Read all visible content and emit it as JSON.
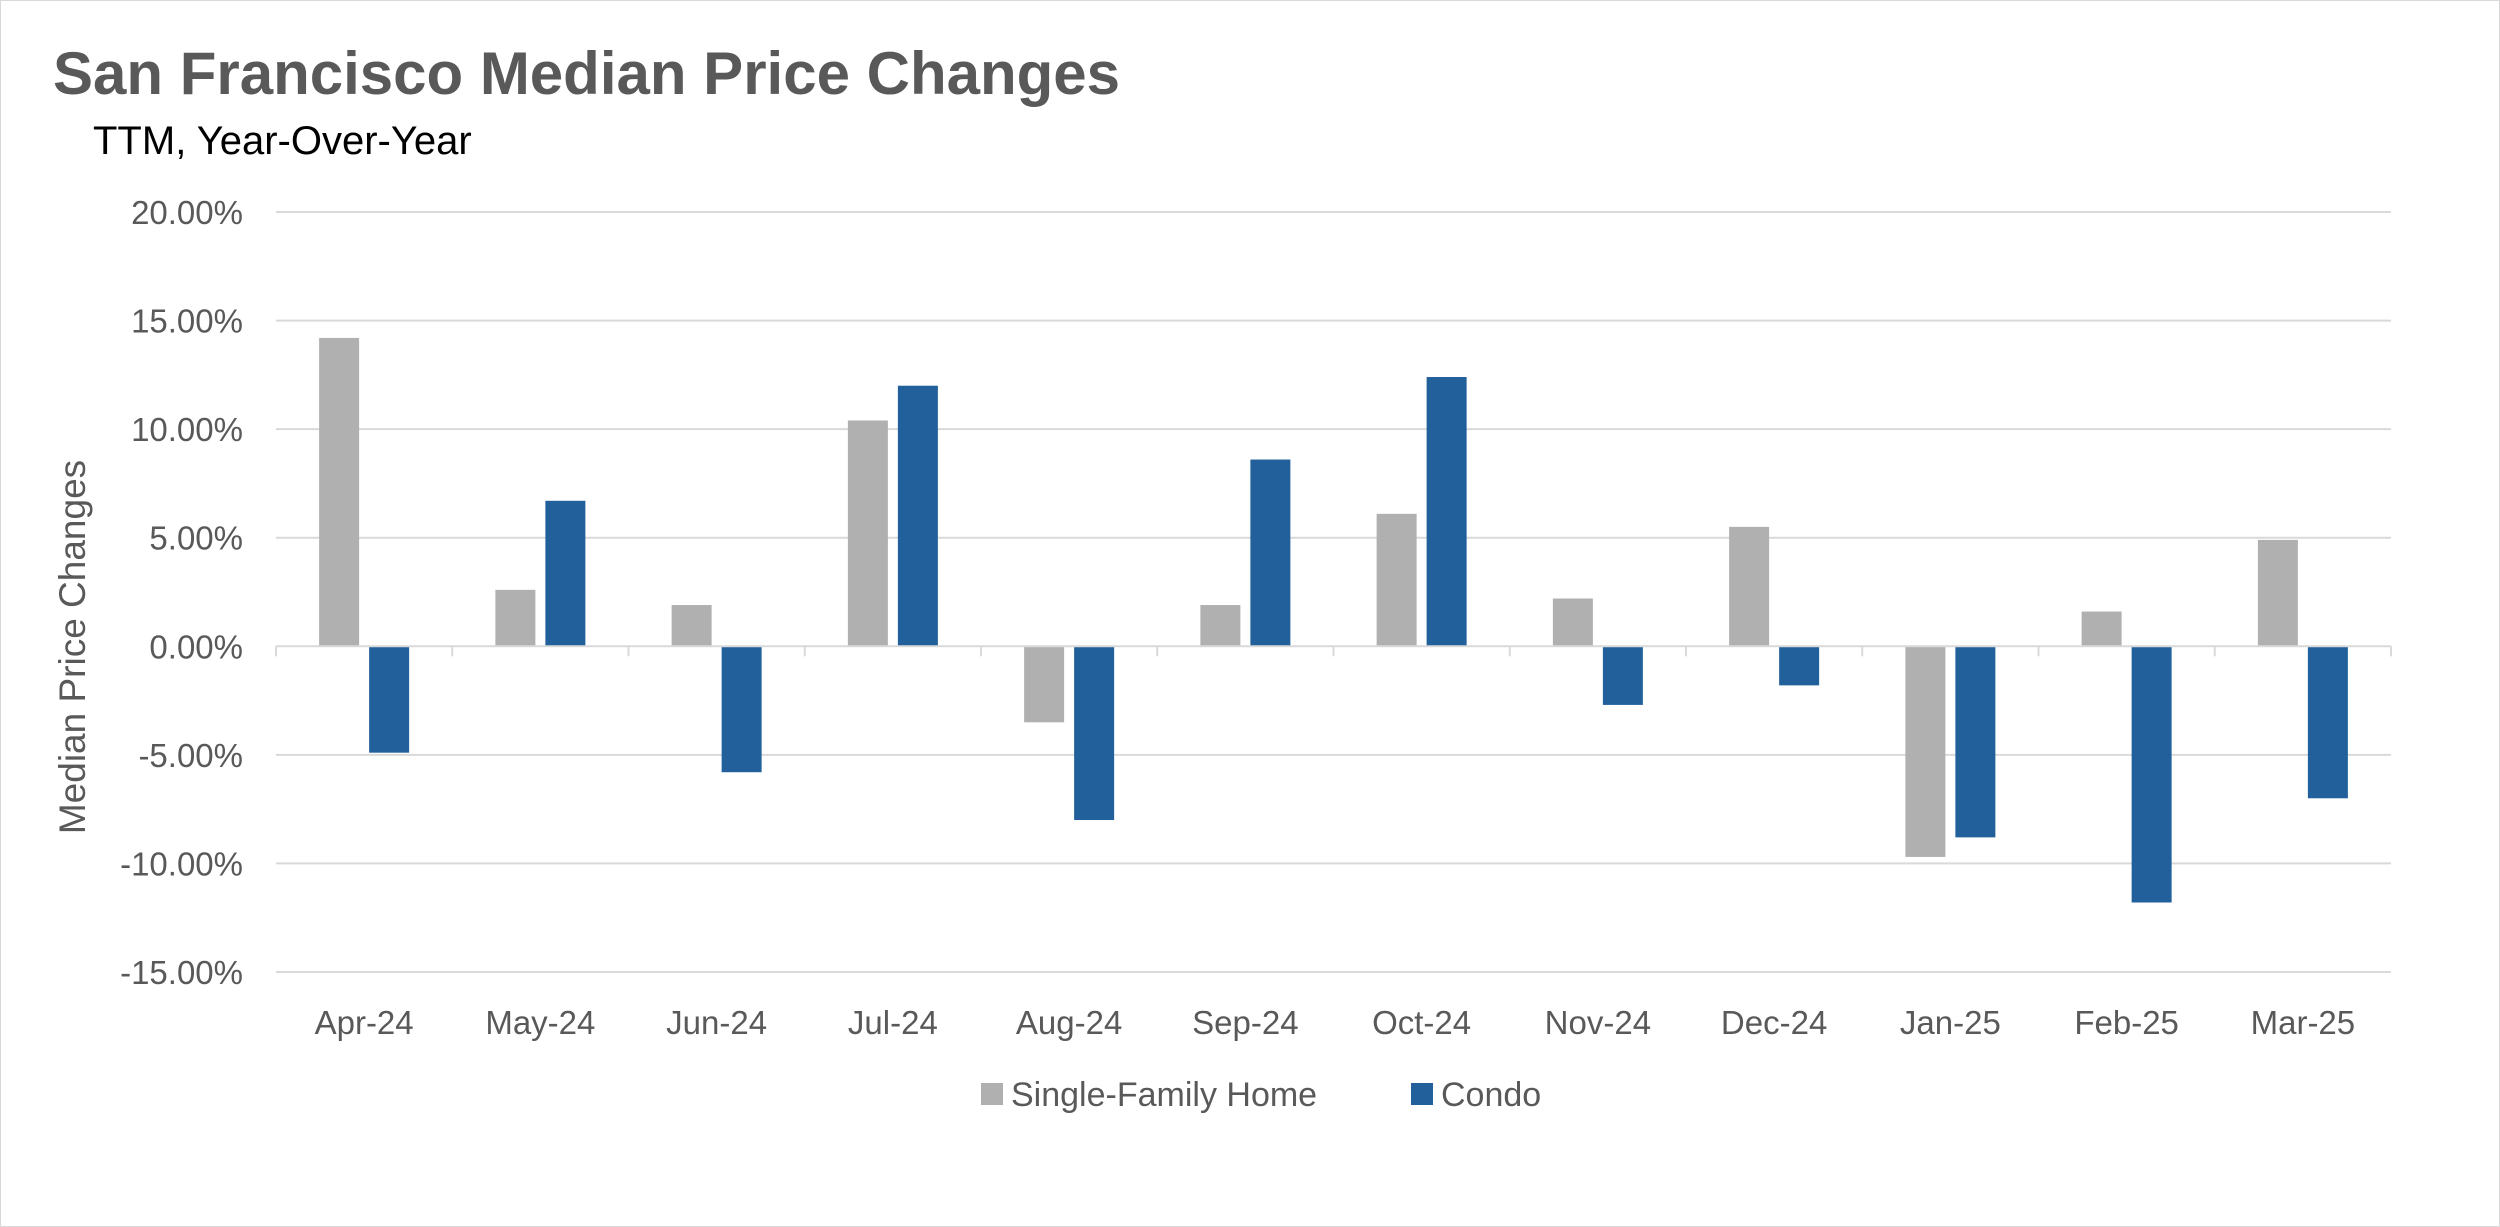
{
  "chart_data": {
    "type": "bar",
    "title": "San Francisco Median Price Changes",
    "subtitle": "TTM, Year-Over-Year",
    "xlabel": "",
    "ylabel": "Median Price Changes",
    "ylim": [
      -15,
      20
    ],
    "yticks": [
      20,
      15,
      10,
      5,
      0,
      -5,
      -10,
      -15
    ],
    "ytick_labels": [
      "20.00%",
      "15.00%",
      "10.00%",
      "5.00%",
      "0.00%",
      "-5.00%",
      "-10.00%",
      "-15.00%"
    ],
    "grid": true,
    "legend_position": "bottom-center",
    "categories": [
      "Apr-24",
      "May-24",
      "Jun-24",
      "Jul-24",
      "Aug-24",
      "Sep-24",
      "Oct-24",
      "Nov-24",
      "Dec-24",
      "Jan-25",
      "Feb-25",
      "Mar-25"
    ],
    "series": [
      {
        "name": "Single-Family Home",
        "color": "#b0b0b0",
        "values": [
          14.2,
          2.6,
          1.9,
          10.4,
          -3.5,
          1.9,
          6.1,
          2.2,
          5.5,
          -9.7,
          1.6,
          4.9
        ]
      },
      {
        "name": "Condo",
        "color": "#21609b",
        "values": [
          -4.9,
          6.7,
          -5.8,
          12.0,
          -8.0,
          8.6,
          12.4,
          -2.7,
          -1.8,
          -8.8,
          -11.8,
          -7.0
        ]
      }
    ]
  }
}
